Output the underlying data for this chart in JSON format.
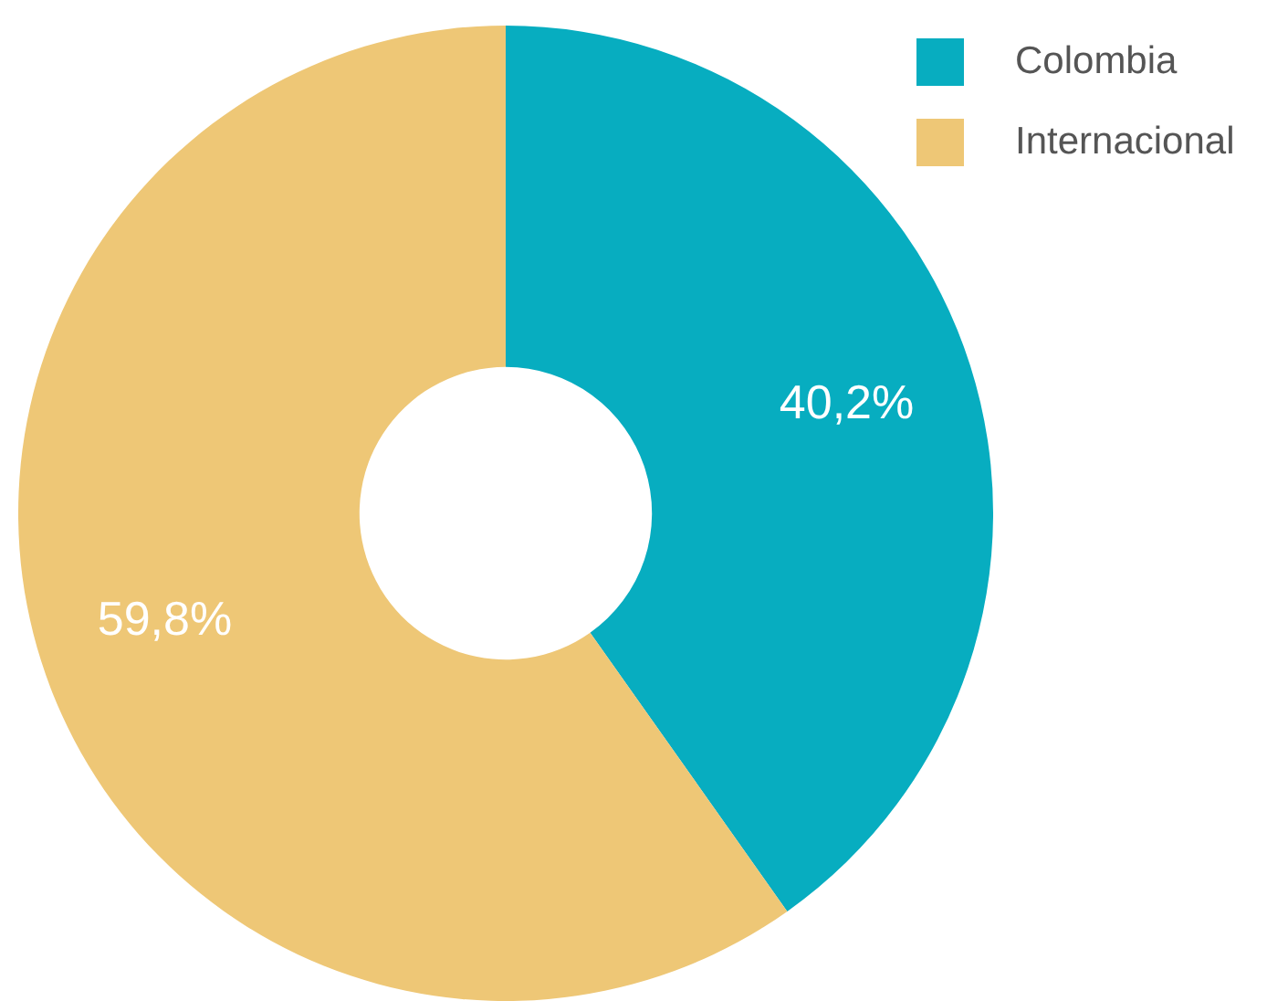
{
  "chart_data": {
    "type": "donut",
    "categories": [
      "Colombia",
      "Internacional"
    ],
    "values": [
      40.2,
      59.8
    ],
    "colors": [
      "#07adc0",
      "#eec776"
    ],
    "value_labels": [
      "40,2%",
      "59,8%"
    ],
    "legend": "top right"
  }
}
